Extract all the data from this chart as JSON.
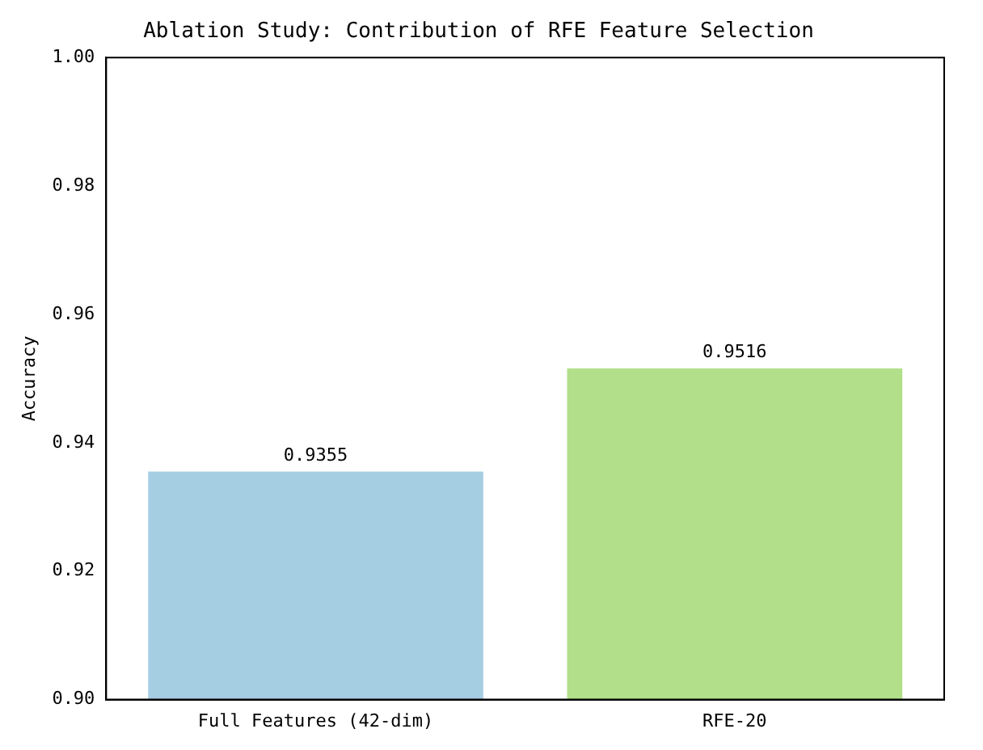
{
  "chart_data": {
    "type": "bar",
    "title": "Ablation Study: Contribution of RFE Feature Selection",
    "ylabel": "Accuracy",
    "categories": [
      "Full Features (42-dim)",
      "RFE-20"
    ],
    "values": [
      0.9355,
      0.9516
    ],
    "colors": [
      "#a6cee3",
      "#b2df8a"
    ],
    "ylim": [
      0.9,
      1.0
    ],
    "yticks": [
      {
        "value": 0.9,
        "label": "0.90"
      },
      {
        "value": 0.92,
        "label": "0.92"
      },
      {
        "value": 0.94,
        "label": "0.94"
      },
      {
        "value": 0.96,
        "label": "0.96"
      },
      {
        "value": 0.98,
        "label": "0.98"
      },
      {
        "value": 1.0,
        "label": "1.00"
      }
    ],
    "data_labels": true,
    "grid": false,
    "legend": false
  }
}
